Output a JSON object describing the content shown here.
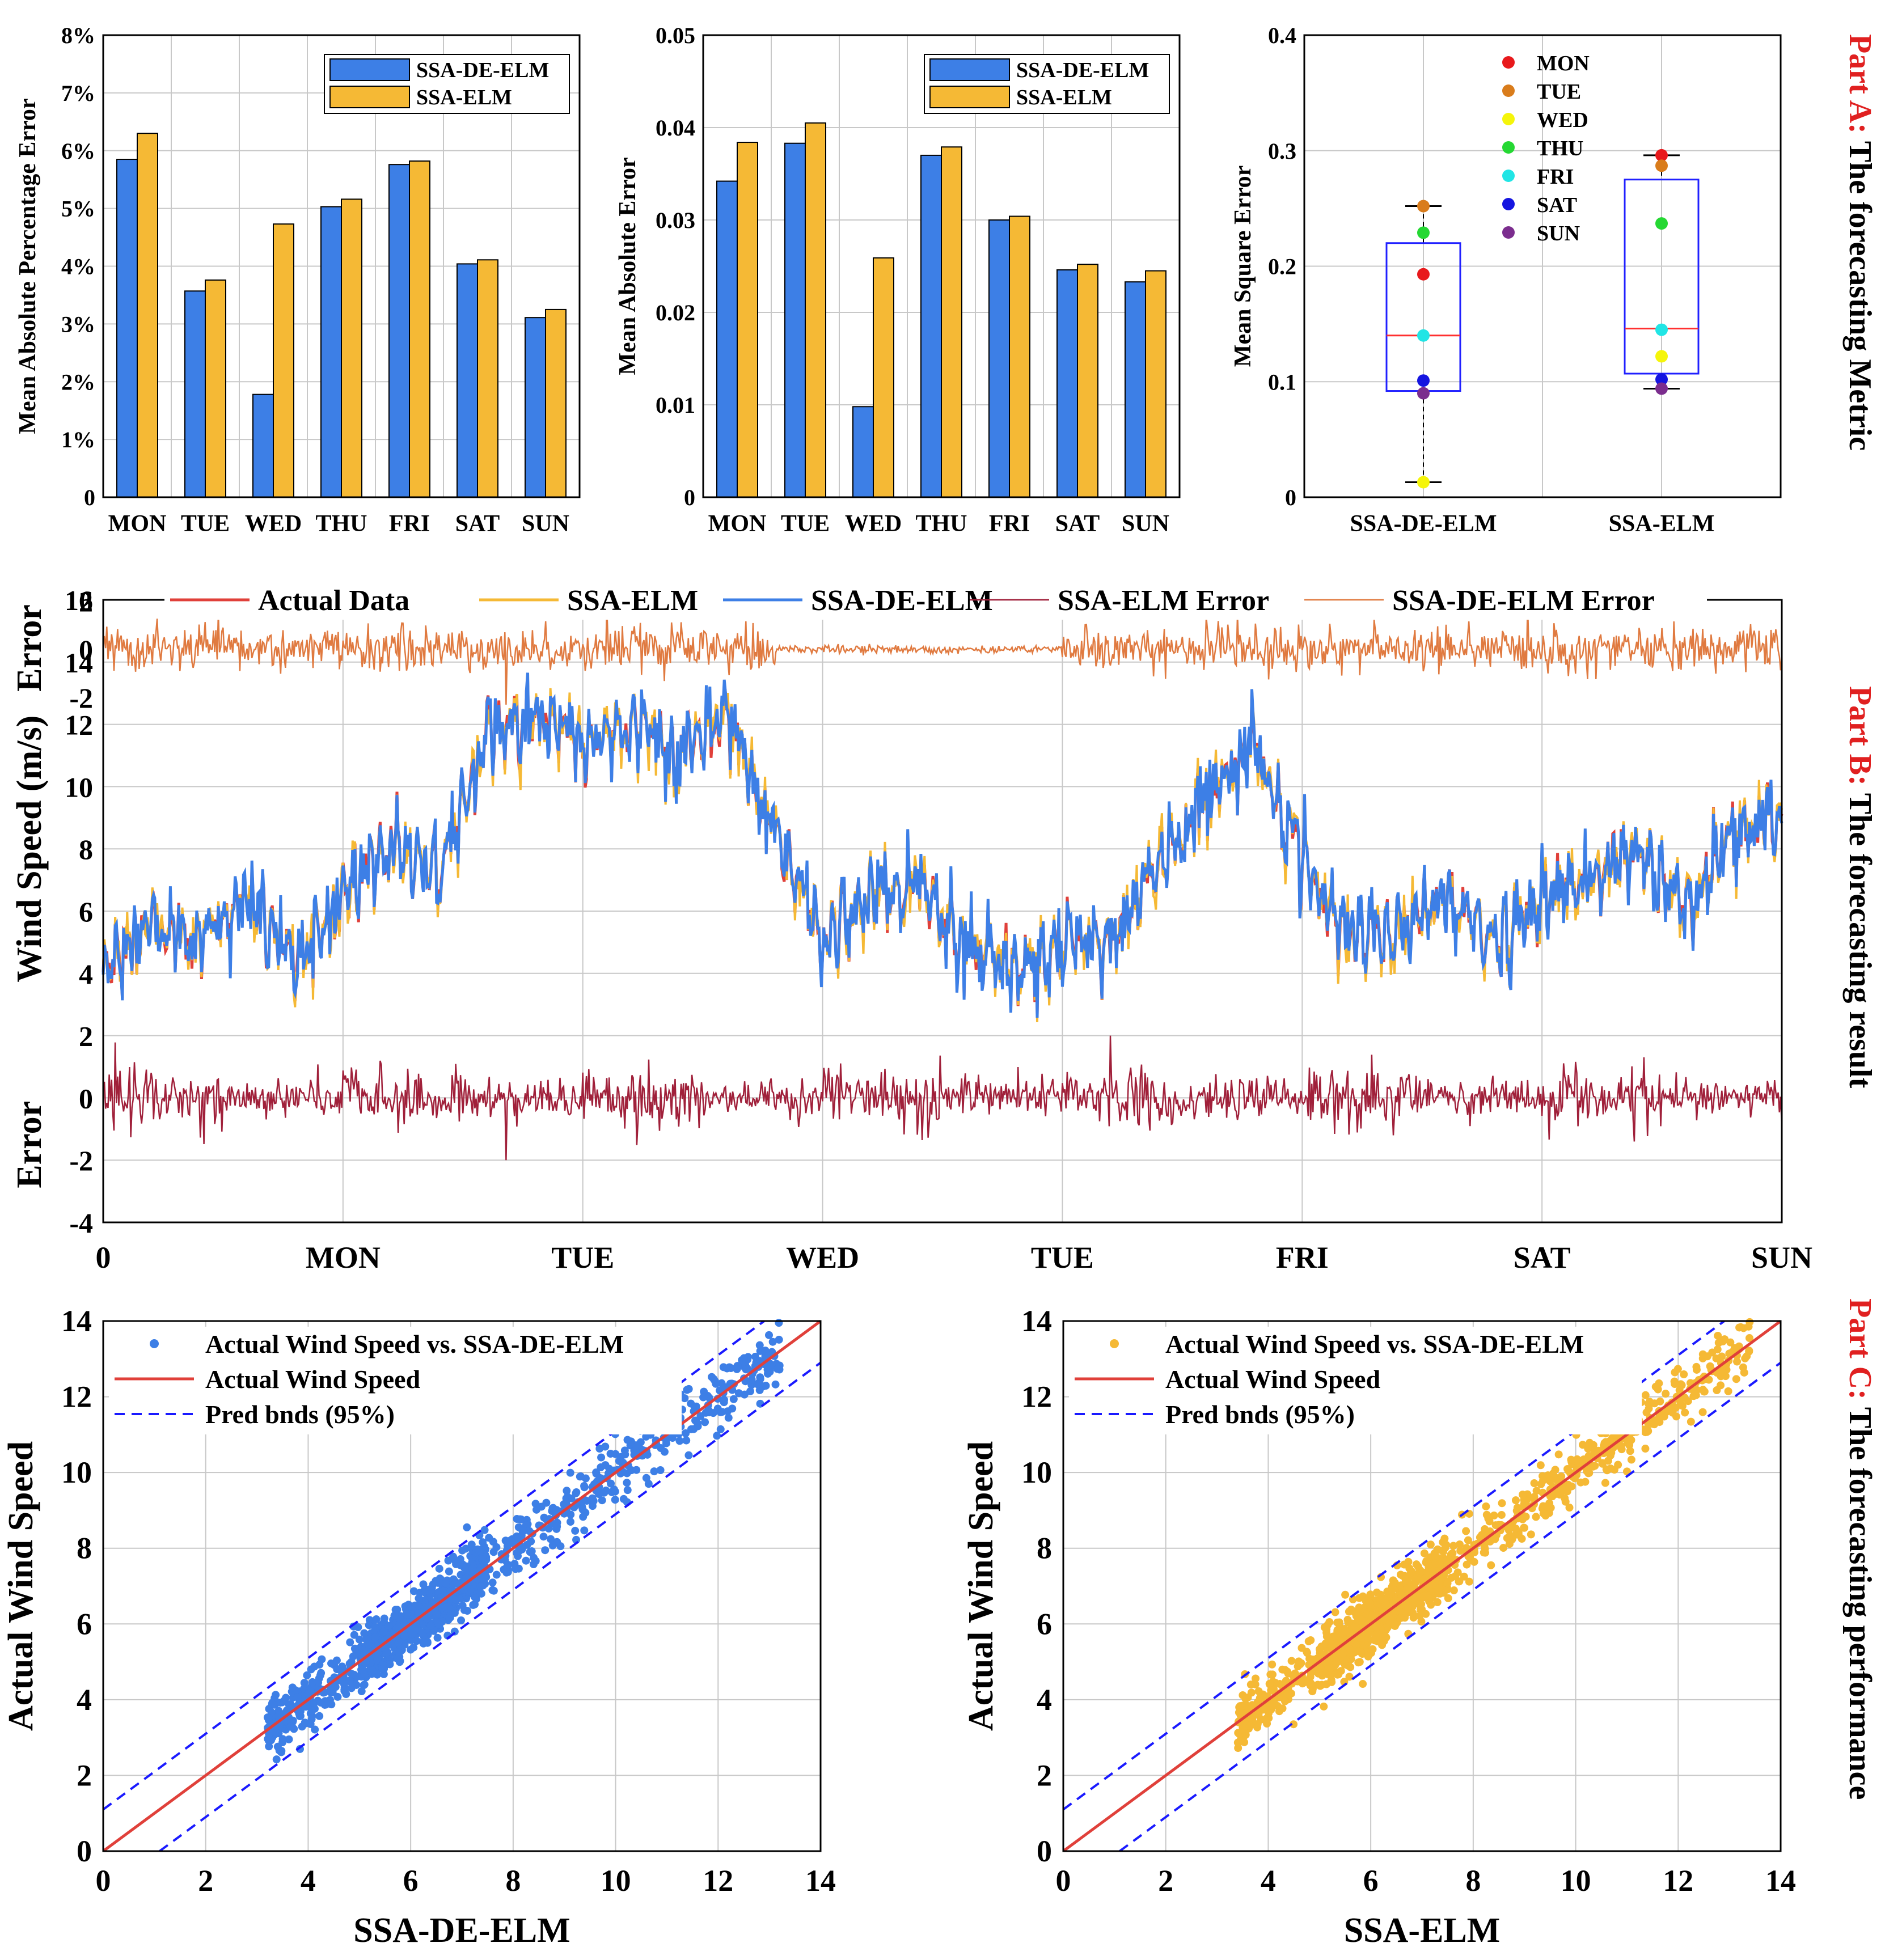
{
  "colors": {
    "blue": "#3d7fe6",
    "orange": "#f5b935",
    "red": "#e0403a",
    "darkred": "#a0203a",
    "err_orange": "#e07a40",
    "box_blue": "#2020ff",
    "dash_blue": "#1a1aff"
  },
  "side_labels": {
    "a_part": "Part A:",
    "a_text": " The forecasting Metric",
    "b_part": "Part B:",
    "b_text": " The forecasting result",
    "c_part": "Part C:",
    "c_text": " The forecasting performance"
  },
  "chart_data": [
    {
      "type": "bar",
      "id": "mape",
      "categories": [
        "MON",
        "TUE",
        "WED",
        "THU",
        "FRI",
        "SAT",
        "SUN"
      ],
      "series": [
        {
          "name": "SSA-DE-ELM",
          "values": [
            5.85,
            3.57,
            1.78,
            5.03,
            5.76,
            4.04,
            3.11
          ]
        },
        {
          "name": "SSA-ELM",
          "values": [
            6.3,
            3.76,
            4.73,
            5.16,
            5.82,
            4.11,
            3.25
          ]
        }
      ],
      "ylabel": "Mean Absolute Percentage Error",
      "ylim": [
        0,
        8
      ],
      "yticks": [
        "0",
        "1%",
        "2%",
        "3%",
        "4%",
        "5%",
        "6%",
        "7%",
        "8%"
      ],
      "grid": true,
      "legend": "top-right"
    },
    {
      "type": "bar",
      "id": "mae",
      "categories": [
        "MON",
        "TUE",
        "WED",
        "THU",
        "FRI",
        "SAT",
        "SUN"
      ],
      "series": [
        {
          "name": "SSA-DE-ELM",
          "values": [
            0.0342,
            0.0383,
            0.0098,
            0.037,
            0.03,
            0.0246,
            0.0233
          ]
        },
        {
          "name": "SSA-ELM",
          "values": [
            0.0384,
            0.0405,
            0.0259,
            0.0379,
            0.0304,
            0.0252,
            0.0245
          ]
        }
      ],
      "ylabel": "Mean Absolute Error",
      "ylim": [
        0,
        0.05
      ],
      "yticks": [
        "0",
        "0.01",
        "0.02",
        "0.03",
        "0.04",
        "0.05"
      ],
      "grid": true,
      "legend": "top-right"
    },
    {
      "type": "box",
      "id": "mse",
      "categories": [
        "SSA-DE-ELM",
        "SSA-ELM"
      ],
      "boxes": [
        {
          "min": 0.013,
          "q1": 0.092,
          "median": 0.14,
          "q3": 0.22,
          "max": 0.252
        },
        {
          "min": 0.094,
          "q1": 0.107,
          "median": 0.146,
          "q3": 0.275,
          "max": 0.296
        }
      ],
      "points": {
        "days": [
          "MON",
          "TUE",
          "WED",
          "THU",
          "FRI",
          "SAT",
          "SUN"
        ],
        "day_colors": [
          "#e8191c",
          "#d97c1b",
          "#f5f50a",
          "#25d833",
          "#21e5e5",
          "#1515e0",
          "#7b2d8e"
        ],
        "values": [
          [
            0.193,
            0.252,
            0.013,
            0.229,
            0.14,
            0.101,
            0.09
          ],
          [
            0.296,
            0.287,
            0.122,
            0.237,
            0.145,
            0.102,
            0.094
          ]
        ]
      },
      "ylabel": "Mean Square Error",
      "ylim": [
        0,
        0.4
      ],
      "yticks": [
        "0",
        "0.1",
        "0.2",
        "0.3",
        "0.4"
      ],
      "grid": true,
      "legend": "top-right"
    },
    {
      "type": "line",
      "id": "timeseries",
      "x_ticks": [
        "0",
        "MON",
        "TUE",
        "WED",
        "TUE",
        "FRI",
        "SAT",
        "SUN"
      ],
      "ylabel": "Wind Speed (m/s)",
      "error_label": "Error",
      "ylim": [
        -4,
        16
      ],
      "yticks": [
        "-4",
        "-2",
        "0",
        "2",
        "4",
        "6",
        "8",
        "10",
        "12",
        "14",
        "16"
      ],
      "upper_error": {
        "ylim": [
          -2,
          2
        ],
        "yticks": [
          "-2",
          "0",
          "2"
        ],
        "label": "Error"
      },
      "legend": [
        "Actual Data",
        "SSA-ELM",
        "SSA-DE-ELM",
        "SSA-ELM Error",
        "SSA-DE-ELM Error"
      ],
      "anchor_points": {
        "day": [
          0,
          0.2,
          0.4,
          0.6,
          0.8,
          1.0,
          1.2,
          1.4,
          1.6,
          1.8,
          2.0,
          2.2,
          2.4,
          2.6,
          2.8,
          3.0,
          3.2,
          3.4,
          3.6,
          3.8,
          4.0,
          4.2,
          4.4,
          4.6,
          4.8,
          5.0,
          5.2,
          5.4,
          5.6,
          5.8,
          6.0,
          6.2,
          6.4,
          6.6,
          6.8,
          7.0
        ],
        "speed": [
          4.2,
          5.5,
          5.0,
          6.5,
          4.5,
          6.5,
          8.0,
          7.0,
          11.8,
          12.0,
          11.5,
          12.0,
          11.0,
          12.3,
          8.5,
          5.0,
          6.5,
          7.0,
          5.0,
          4.0,
          4.8,
          5.2,
          7.5,
          9.5,
          11.5,
          7.5,
          5.0,
          5.5,
          6.5,
          5.0,
          6.5,
          7.0,
          8.0,
          6.0,
          8.5,
          9.0
        ]
      }
    },
    {
      "type": "scatter",
      "id": "scatter-de",
      "xlabel": "SSA-DE-ELM",
      "ylabel": "Actual Wind Speed",
      "xlim": [
        0,
        14
      ],
      "ylim": [
        0,
        14
      ],
      "ticks": [
        "0",
        "2",
        "4",
        "6",
        "8",
        "10",
        "12",
        "14"
      ],
      "legend": [
        "Actual Wind Speed vs. SSA-DE-ELM",
        "Actual Wind Speed",
        "Pred bnds (95%)"
      ],
      "x_range_points": [
        3.2,
        13.2
      ],
      "band_offset": 1.1
    },
    {
      "type": "scatter",
      "id": "scatter-elm",
      "xlabel": "SSA-ELM",
      "ylabel": "Actual Wind Speed",
      "xlim": [
        0,
        14
      ],
      "ylim": [
        0,
        14
      ],
      "ticks": [
        "0",
        "2",
        "4",
        "6",
        "8",
        "10",
        "12",
        "14"
      ],
      "legend": [
        "Actual Wind Speed vs. SSA-DE-ELM",
        "Actual Wind Speed",
        "Pred bnds (95%)"
      ],
      "x_range_points": [
        3.4,
        13.4
      ],
      "band_offset": 1.1
    }
  ]
}
